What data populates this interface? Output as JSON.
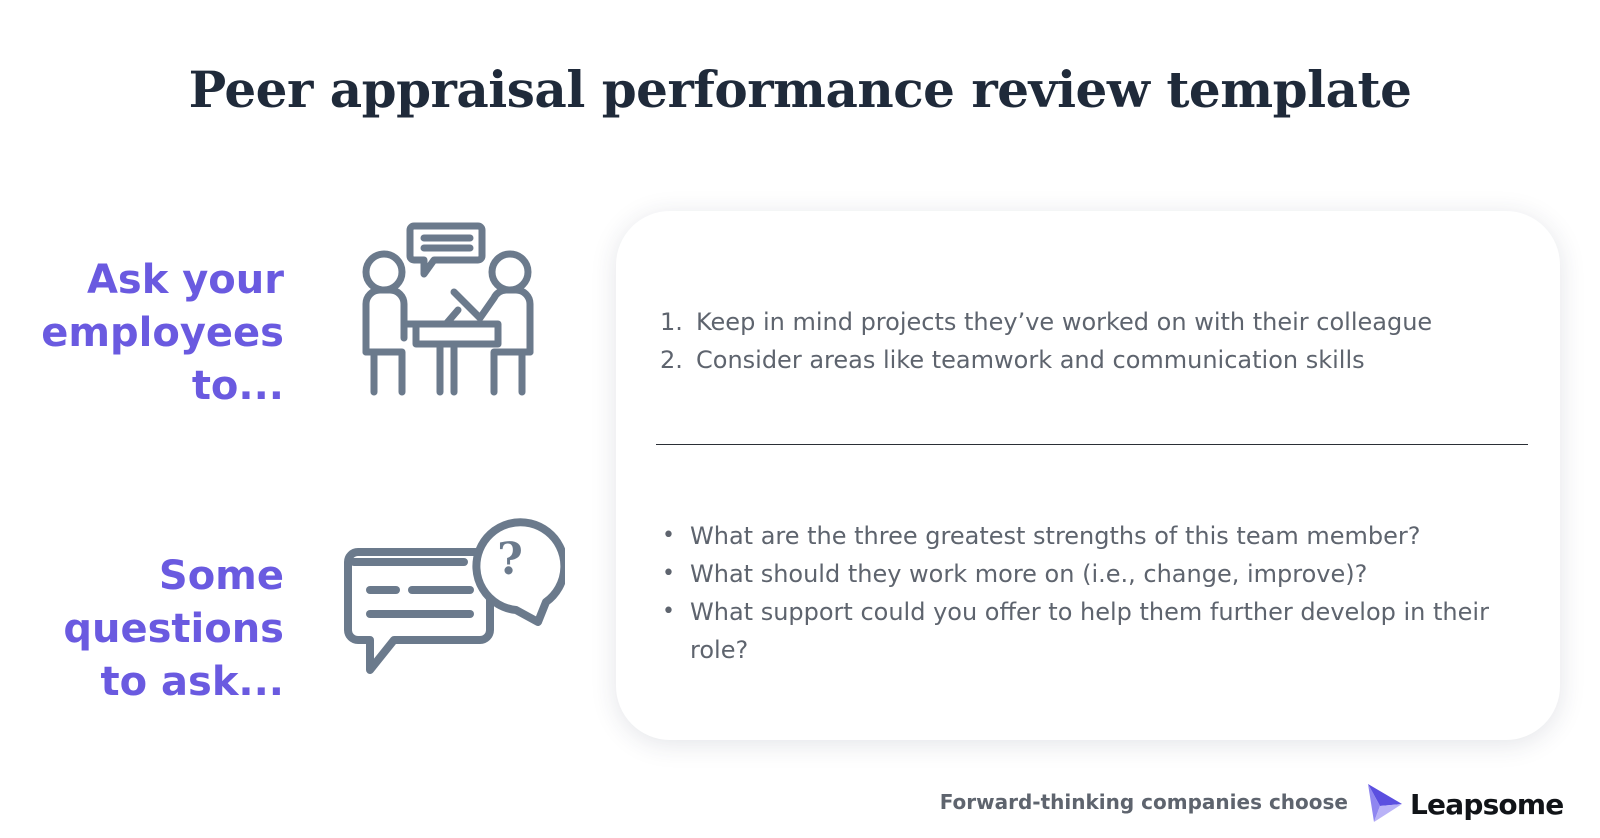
{
  "title": "Peer appraisal performance review template",
  "sections": {
    "ask_label": "Ask your\nemployees\nto...",
    "questions_label": "Some\nquestions\nto ask..."
  },
  "card": {
    "numbered_items": [
      {
        "number": "1.",
        "text": "Keep  in mind projects they’ve worked on with their colleague"
      },
      {
        "number": "2.",
        "text": "Consider areas like teamwork and communication skills"
      }
    ],
    "bullet_items": [
      "What are the three greatest strengths of this team member?",
      "What should they work more on (i.e., change, improve)?",
      "What support could you offer to help them further develop in their role?"
    ]
  },
  "footer": {
    "tagline": "Forward-thinking companies choose",
    "brand_name": "Leapsome"
  },
  "icons": {
    "meeting": "meeting-icon",
    "chat": "question-chat-icon",
    "brand": "leapsome-logo-icon"
  },
  "colors": {
    "title": "#1f2a3a",
    "accent": "#6a5ae0",
    "icon_stroke": "#6b7a8c",
    "body_text": "#5e646e"
  }
}
